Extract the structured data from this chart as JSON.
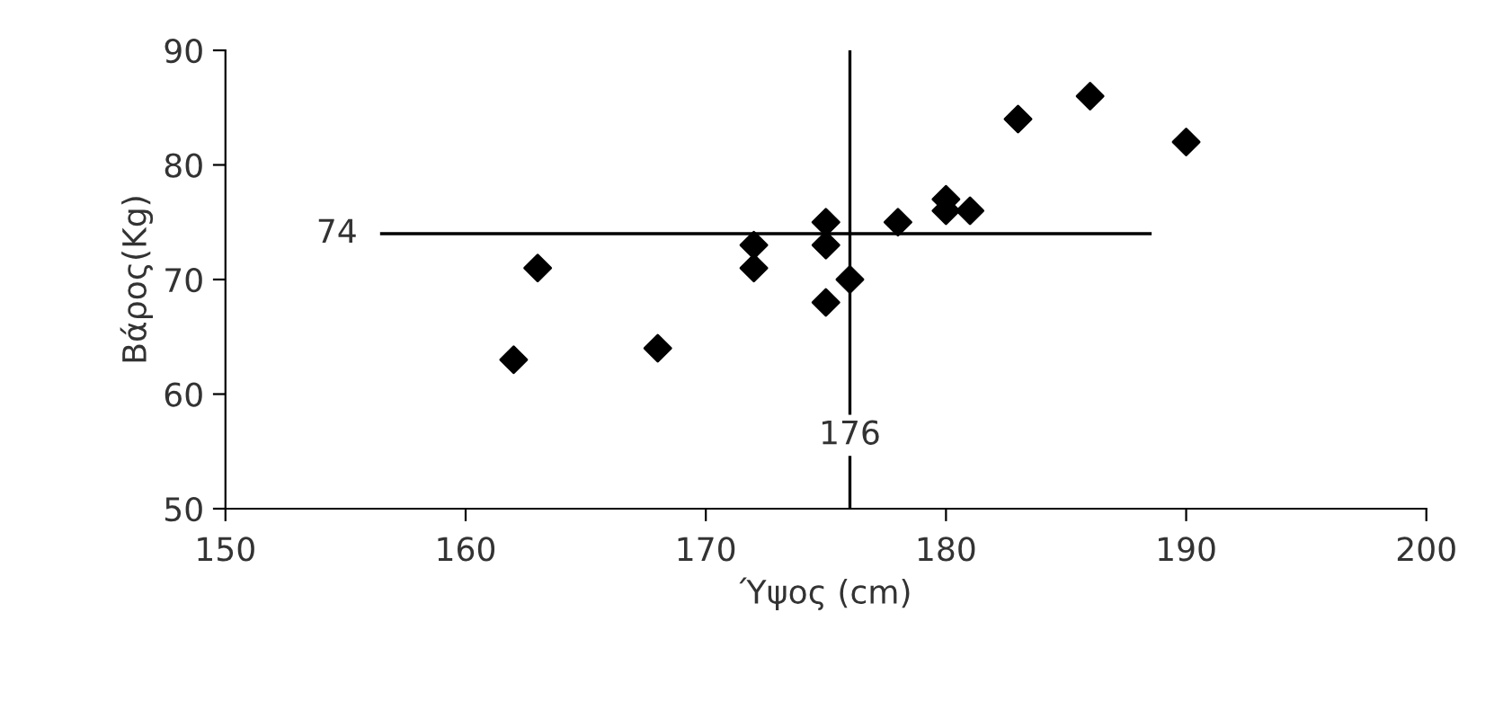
{
  "chart_data": {
    "type": "scatter",
    "xlabel": "Ύψος (cm)",
    "ylabel": "Βάρος(Kg)",
    "x": [
      162,
      163,
      168,
      172,
      172,
      175,
      175,
      175,
      176,
      178,
      180,
      180,
      181,
      183,
      186,
      190
    ],
    "series": [
      {
        "color": "#000000",
        "values": [
          63,
          71,
          64,
          73,
          71,
          75,
          73,
          68,
          70,
          75,
          77,
          76,
          76,
          84,
          86,
          82
        ]
      }
    ],
    "marker": "diamond",
    "xlim": [
      150,
      200
    ],
    "xticks": [
      150,
      160,
      170,
      180,
      190,
      200
    ],
    "ylim": [
      50,
      90
    ],
    "yticks": [
      50,
      60,
      70,
      80,
      90
    ],
    "ref_lines": [
      {
        "axis": "y",
        "value": 74,
        "label": "74",
        "color": "#000000"
      },
      {
        "axis": "x",
        "value": 176,
        "label": "176",
        "color": "#000000"
      }
    ],
    "grid": false,
    "legend": false
  }
}
